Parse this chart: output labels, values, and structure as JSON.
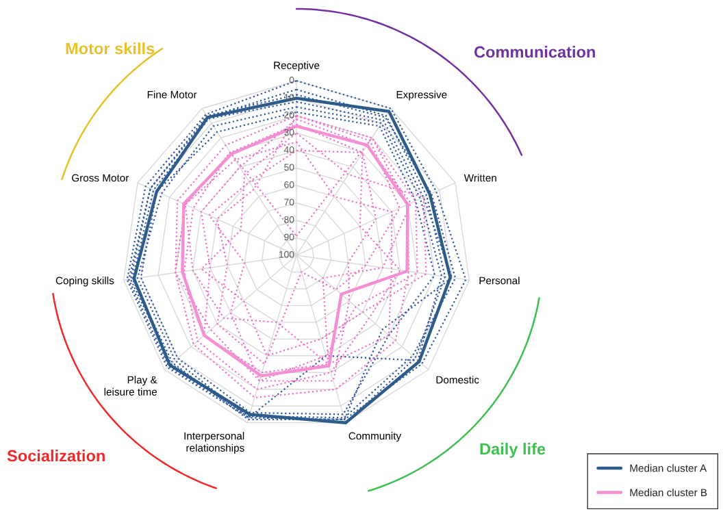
{
  "chart_data": {
    "type": "radar",
    "categories": [
      "Receptive",
      "Expressive",
      "Written",
      "Personal",
      "Domestic",
      "Community",
      "Interpersonal\nrelationships",
      "Play &\nleisure time",
      "Coping skills",
      "Gross Motor",
      "Fine Motor"
    ],
    "ylim": [
      100,
      0
    ],
    "yticks": [
      0,
      10,
      20,
      30,
      40,
      50,
      60,
      70,
      80,
      90,
      100
    ],
    "grid": true,
    "legend": "bottom right",
    "marker": "none",
    "annotations": [
      "Motor skills",
      "Communication",
      "Daily life",
      "Socialization"
    ],
    "series": [
      {
        "color": "#2f56a0",
        "line_style": "dotted",
        "values": [
          0,
          0,
          12,
          2,
          5,
          2,
          3,
          2,
          2,
          5,
          4
        ]
      },
      {
        "color": "#2f56a0",
        "line_style": "dotted",
        "values": [
          5,
          5,
          18,
          14,
          10,
          0,
          4,
          5,
          4,
          8,
          6
        ]
      },
      {
        "color": "#2f56a0",
        "line_style": "dotted",
        "values": [
          12,
          8,
          20,
          10,
          35,
          2,
          2,
          6,
          5,
          10,
          7
        ]
      },
      {
        "color": "#2f56a0",
        "line_style": "dotted",
        "values": [
          15,
          10,
          22,
          16,
          8,
          40,
          3,
          8,
          8,
          15,
          12
        ]
      },
      {
        "color": "#2f56a0",
        "line_style": "dotted",
        "values": [
          8,
          6,
          15,
          8,
          12,
          3,
          4,
          3,
          3,
          8,
          5
        ]
      },
      {
        "color": "#2f56a0",
        "line_style": "dotted",
        "values": [
          18,
          12,
          25,
          20,
          30,
          5,
          6,
          10,
          10,
          12,
          16
        ]
      },
      {
        "color": "#f070c8",
        "line_style": "dotted",
        "values": [
          89,
          20,
          25,
          30,
          55,
          40,
          25,
          35,
          30,
          30,
          30
        ]
      },
      {
        "color": "#f070c8",
        "line_style": "dotted",
        "values": [
          20,
          22,
          35,
          60,
          70,
          90,
          35,
          40,
          60,
          50,
          55
        ]
      },
      {
        "color": "#f070c8",
        "line_style": "dotted",
        "values": [
          25,
          30,
          60,
          40,
          45,
          30,
          20,
          25,
          35,
          35,
          30
        ]
      },
      {
        "color": "#f070c8",
        "line_style": "dotted",
        "values": [
          30,
          45,
          20,
          25,
          50,
          50,
          40,
          60,
          45,
          65,
          45
        ]
      },
      {
        "color": "#f070c8",
        "line_style": "dotted",
        "values": [
          20,
          20,
          30,
          35,
          25,
          20,
          15,
          22,
          30,
          25,
          25
        ]
      },
      {
        "color": "#f070c8",
        "line_style": "dotted",
        "values": [
          35,
          60,
          40,
          45,
          30,
          35,
          60,
          45,
          40,
          30,
          35
        ]
      },
      {
        "color": "#f070c8",
        "line_style": "dotted",
        "values": [
          22,
          25,
          28,
          50,
          80,
          35,
          30,
          30,
          50,
          40,
          40
        ]
      },
      {
        "color": "#f070c8",
        "line_style": "dotted",
        "values": [
          40,
          30,
          50,
          70,
          60,
          25,
          25,
          50,
          70,
          45,
          50
        ]
      },
      {
        "name": "Median cluster A",
        "color": "#2e5c8a",
        "line_style": "solid",
        "values": [
          10,
          2,
          16,
          11,
          7,
          0,
          5,
          4,
          6,
          12,
          6
        ]
      },
      {
        "name": "Median cluster B",
        "color": "#f48fd4",
        "line_style": "solid",
        "values": [
          26,
          25,
          30,
          36,
          66,
          34,
          28,
          30,
          34,
          29,
          31
        ]
      }
    ]
  }
}
